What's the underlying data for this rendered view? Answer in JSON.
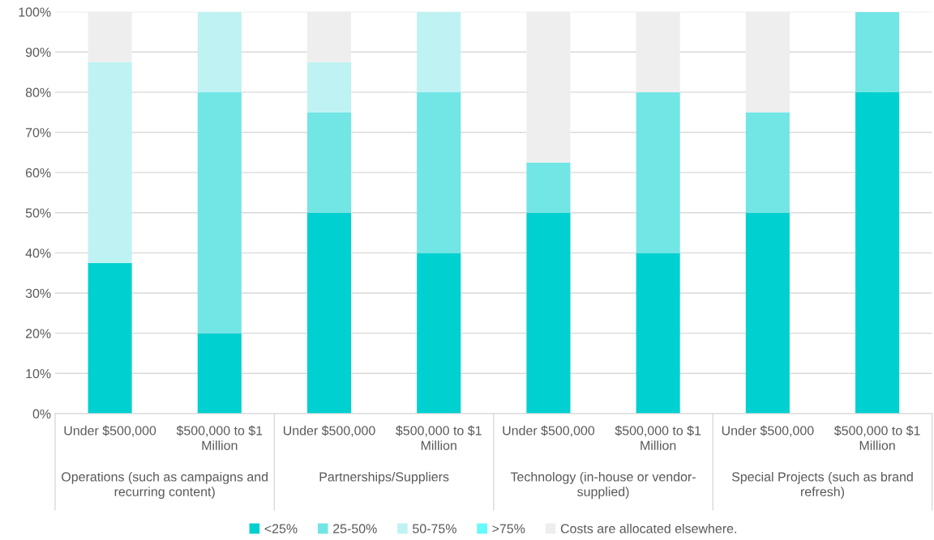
{
  "chart_data": {
    "type": "bar",
    "stacked": true,
    "categories": [
      "Under $500,000",
      "$500,000 to $1\nMillion",
      "Under $500,000",
      "$500,000 to $1\nMillion",
      "Under $500,000",
      "$500,000 to $1\nMillion",
      "Under $500,000",
      "$500,000 to $1\nMillion"
    ],
    "series": [
      {
        "name": "<25%",
        "color": "#00d0d0",
        "values": [
          37.5,
          20,
          50,
          40,
          50,
          40,
          50,
          80
        ]
      },
      {
        "name": "25-50%",
        "color": "#72e5e5",
        "values": [
          0,
          60,
          25,
          40,
          12.5,
          40,
          25,
          20
        ]
      },
      {
        "name": "50-75%",
        "color": "#bff2f2",
        "values": [
          50,
          20,
          12.5,
          20,
          0,
          0,
          0,
          0
        ]
      },
      {
        "name": ">75%",
        "color": "#66fafa",
        "values": [
          0,
          0,
          0,
          0,
          0,
          0,
          0,
          0
        ]
      },
      {
        "name": "Costs are allocated elsewhere.",
        "color": "#eeeeee",
        "values": [
          12.5,
          0,
          12.5,
          0,
          37.5,
          20,
          25,
          0
        ]
      }
    ],
    "annotations": [
      "Operations (such as campaigns and\nrecurring content)",
      "Partnerships/Suppliers",
      "Technology (in-house or vendor-\nsupplied)",
      "Special Projects (such as brand\nrefresh)"
    ],
    "ylim": [
      0,
      100
    ],
    "yticks": [
      {
        "value": 0,
        "label": "0%"
      },
      {
        "value": 10,
        "label": "10%"
      },
      {
        "value": 20,
        "label": "20%"
      },
      {
        "value": 30,
        "label": "30%"
      },
      {
        "value": 40,
        "label": "40%"
      },
      {
        "value": 50,
        "label": "50%"
      },
      {
        "value": 60,
        "label": "60%"
      },
      {
        "value": 70,
        "label": "70%"
      },
      {
        "value": 80,
        "label": "80%"
      },
      {
        "value": 90,
        "label": "90%"
      },
      {
        "value": 100,
        "label": "100%"
      }
    ],
    "grid": "y",
    "legend": "bottom"
  }
}
